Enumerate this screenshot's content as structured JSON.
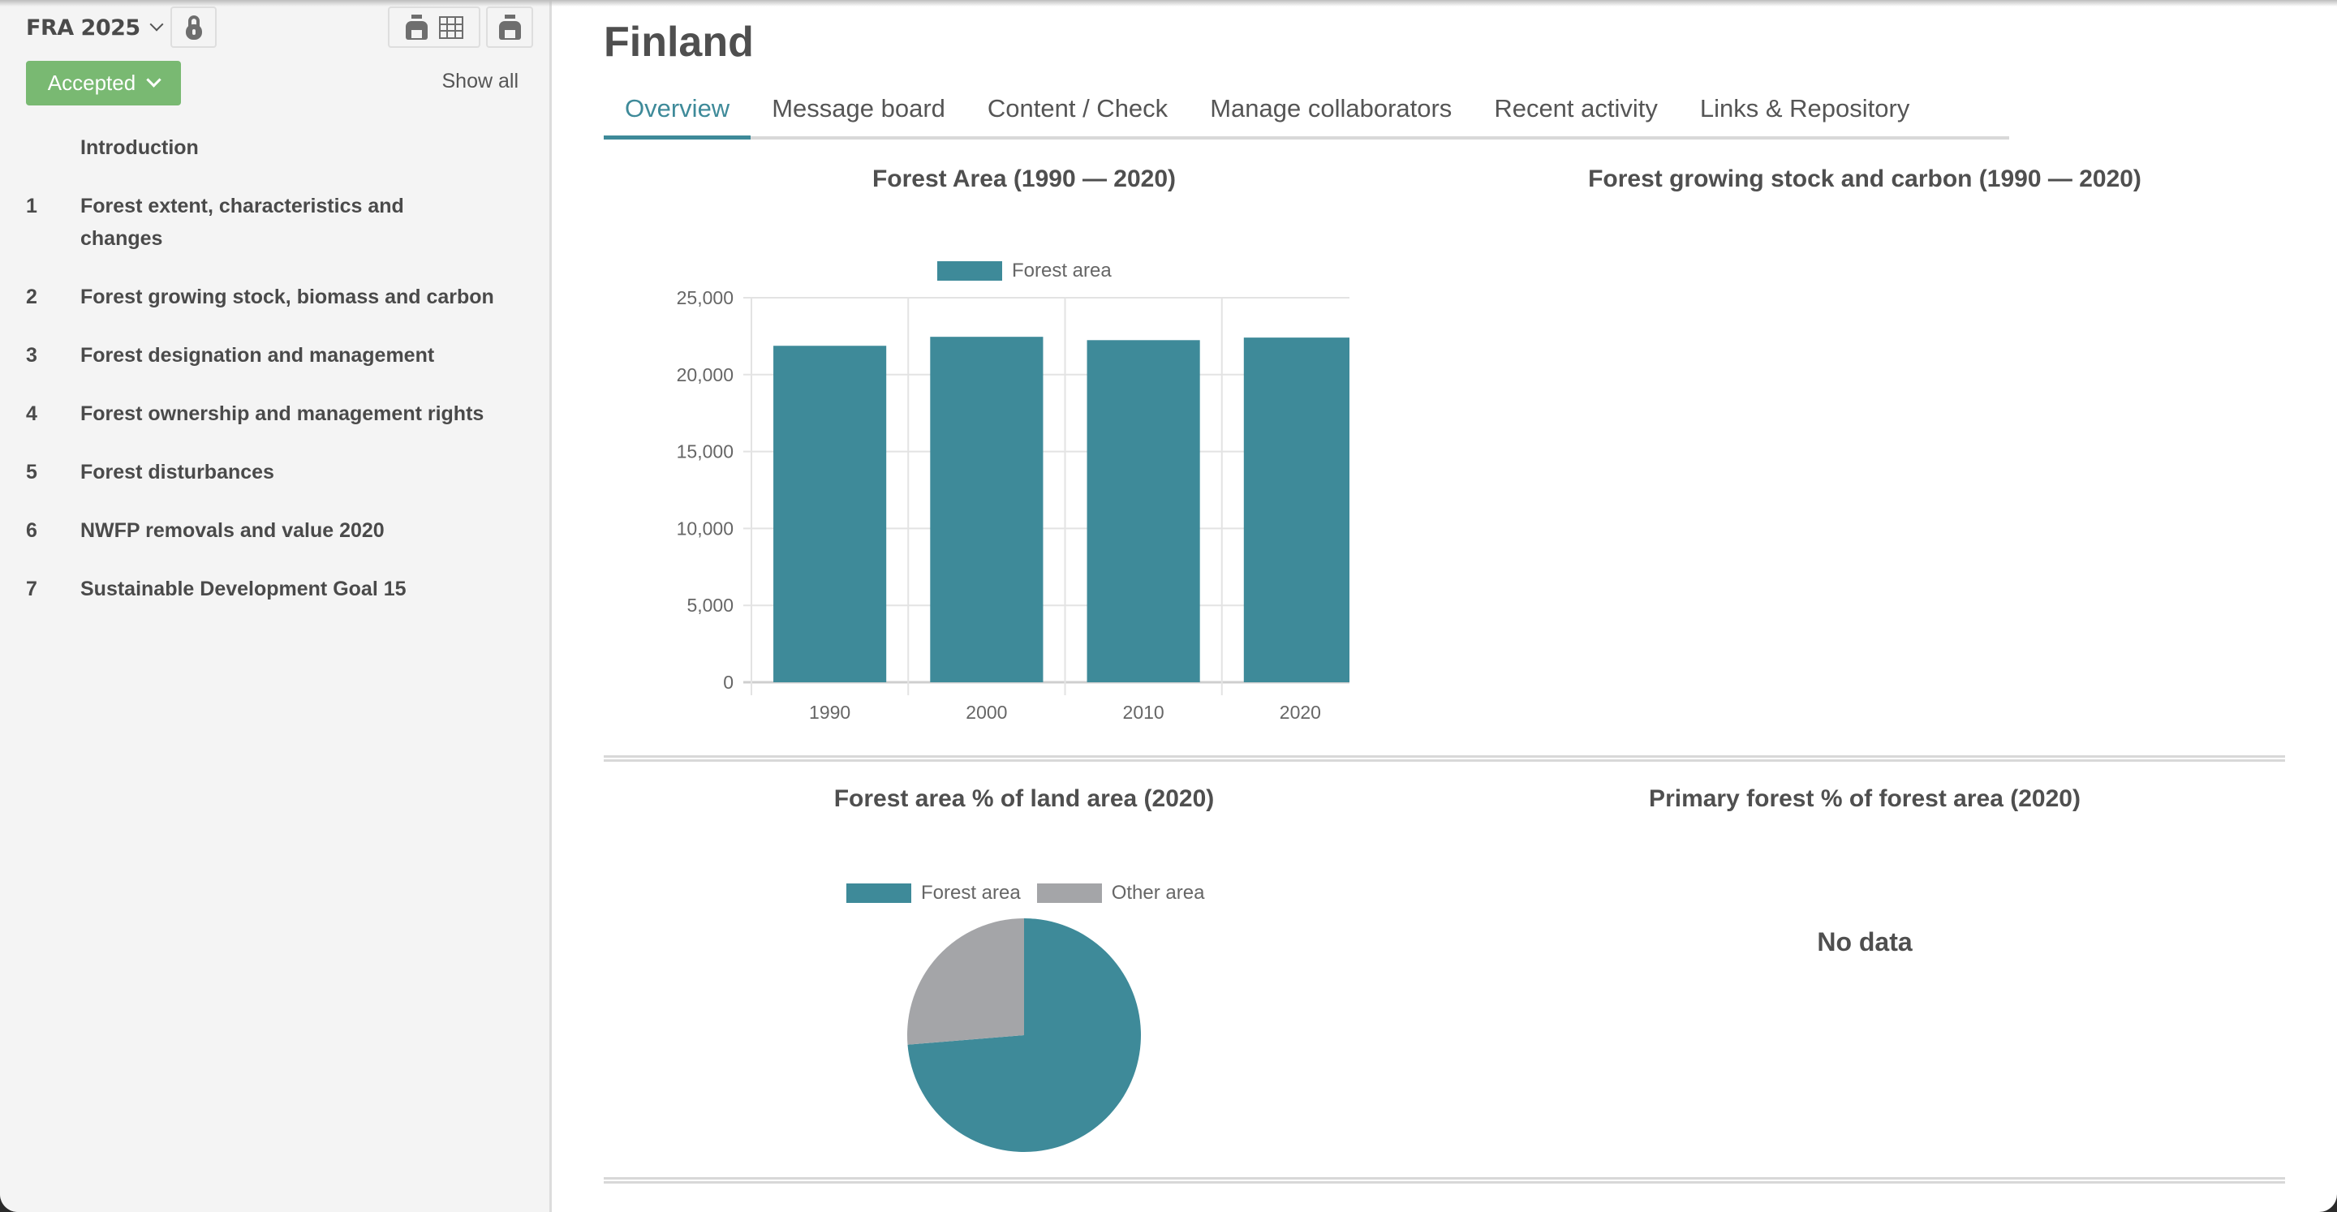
{
  "sidebar": {
    "cycle_label": "FRA 2025",
    "status_label": "Accepted",
    "show_all_label": "Show all",
    "icons": {
      "lock": "lock-icon",
      "print_table": "printer-table-icon",
      "print": "printer-icon"
    },
    "items": [
      {
        "num": "",
        "label": "Introduction"
      },
      {
        "num": "1",
        "label": "Forest extent, characteristics and changes"
      },
      {
        "num": "2",
        "label": "Forest growing stock, biomass and carbon"
      },
      {
        "num": "3",
        "label": "Forest designation and management"
      },
      {
        "num": "4",
        "label": "Forest ownership and management rights"
      },
      {
        "num": "5",
        "label": "Forest disturbances"
      },
      {
        "num": "6",
        "label": "NWFP removals and value 2020"
      },
      {
        "num": "7",
        "label": "Sustainable Development Goal 15"
      }
    ]
  },
  "header": {
    "country": "Finland",
    "tabs": [
      {
        "label": "Overview",
        "active": true
      },
      {
        "label": "Message board",
        "active": false
      },
      {
        "label": "Content / Check",
        "active": false
      },
      {
        "label": "Manage collaborators",
        "active": false
      },
      {
        "label": "Recent activity",
        "active": false
      },
      {
        "label": "Links & Repository",
        "active": false
      }
    ]
  },
  "panels": {
    "forest_area_title": "Forest Area (1990 — 2020)",
    "growing_stock_title": "Forest growing stock and carbon (1990 — 2020)",
    "land_pct_title": "Forest area % of land area (2020)",
    "primary_title": "Primary forest % of forest area (2020)",
    "primary_no_data": "No data"
  },
  "colors": {
    "accent": "#3e8a99",
    "status_green": "#79b972",
    "other_area_gray": "#a4a5a8"
  },
  "chart_data": [
    {
      "type": "bar",
      "title": "Forest Area (1990 — 2020)",
      "categories": [
        "1990",
        "2000",
        "2010",
        "2020"
      ],
      "series": [
        {
          "name": "Forest area",
          "values": [
            21875,
            22459,
            22242,
            22409
          ],
          "color": "#3e8a99"
        }
      ],
      "xlabel": "",
      "ylabel": "",
      "ylim": [
        0,
        25000
      ],
      "yticks": [
        "0",
        "5,000",
        "10,000",
        "15,000",
        "20,000",
        "25,000"
      ],
      "grid": true,
      "legend_position": "top"
    },
    {
      "type": "pie",
      "title": "Forest area % of land area (2020)",
      "categories": [
        "Forest area",
        "Other area"
      ],
      "values": [
        73.7,
        26.3
      ],
      "colors": [
        "#3e8a99",
        "#a4a5a8"
      ],
      "legend_position": "top"
    }
  ]
}
